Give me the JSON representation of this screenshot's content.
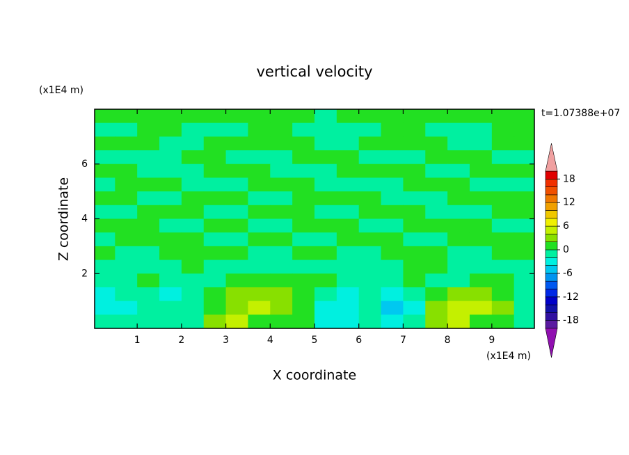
{
  "chart_data": {
    "type": "contour",
    "title": "vertical velocity",
    "xlabel": "X coordinate",
    "ylabel": "Z coordinate",
    "x_unit": "(x1E4 m)",
    "y_unit": "(x1E4 m)",
    "annotation": "t=1.07388e+07",
    "xlim": [
      0.04,
      9.96
    ],
    "ylim": [
      0,
      8
    ],
    "xticks": [
      1,
      2,
      3,
      4,
      5,
      6,
      7,
      8,
      9
    ],
    "yticks": [
      2,
      4,
      6
    ],
    "x": [
      0.25,
      0.75,
      1.25,
      1.75,
      2.25,
      2.75,
      3.25,
      3.75,
      4.25,
      4.75,
      5.25,
      5.75,
      6.25,
      6.75,
      7.25,
      7.75,
      8.25,
      8.75,
      9.25,
      9.75
    ],
    "y": [
      7.75,
      7.25,
      6.75,
      6.25,
      5.75,
      5.25,
      4.75,
      4.25,
      3.75,
      3.25,
      2.75,
      2.25,
      1.75,
      1.25,
      0.75,
      0.25
    ],
    "z": [
      [
        1,
        1,
        1,
        1,
        1,
        1,
        1,
        1,
        1,
        1,
        -1,
        1,
        1,
        1,
        1,
        1,
        1,
        1,
        1,
        1
      ],
      [
        -1,
        -1,
        1,
        1,
        -1,
        -1,
        -1,
        1,
        1,
        -1,
        -1,
        -1,
        -1,
        1,
        1,
        -1,
        -1,
        -1,
        1,
        1
      ],
      [
        1,
        1,
        1,
        -1,
        -1,
        1,
        1,
        1,
        1,
        1,
        -1,
        -1,
        1,
        1,
        1,
        1,
        -1,
        -1,
        1,
        1
      ],
      [
        -1,
        -1,
        -1,
        -1,
        1,
        1,
        -1,
        -1,
        -1,
        1,
        1,
        1,
        -1,
        -1,
        -1,
        1,
        1,
        1,
        -1,
        -1
      ],
      [
        1,
        1,
        -1,
        -1,
        -1,
        1,
        1,
        1,
        -1,
        -1,
        -1,
        1,
        1,
        1,
        1,
        -1,
        -1,
        1,
        1,
        1
      ],
      [
        -1,
        1,
        1,
        1,
        -1,
        -1,
        -1,
        1,
        1,
        1,
        -1,
        -1,
        -1,
        -1,
        1,
        1,
        1,
        -1,
        -1,
        -1
      ],
      [
        1,
        1,
        -1,
        -1,
        1,
        1,
        1,
        -1,
        -1,
        1,
        1,
        1,
        1,
        -1,
        -1,
        -1,
        1,
        1,
        1,
        1
      ],
      [
        -1,
        -1,
        1,
        1,
        1,
        -1,
        -1,
        1,
        1,
        1,
        -1,
        -1,
        1,
        1,
        1,
        -1,
        -1,
        -1,
        1,
        1
      ],
      [
        1,
        1,
        1,
        -1,
        -1,
        1,
        1,
        -1,
        -1,
        1,
        1,
        1,
        -1,
        -1,
        1,
        1,
        1,
        1,
        -1,
        -1
      ],
      [
        -1,
        1,
        1,
        1,
        1,
        -1,
        -1,
        1,
        1,
        -1,
        -1,
        1,
        1,
        1,
        -1,
        -1,
        1,
        1,
        1,
        1
      ],
      [
        1,
        -1,
        -1,
        1,
        1,
        1,
        1,
        -1,
        -1,
        1,
        1,
        -1,
        -1,
        1,
        1,
        1,
        -1,
        -1,
        1,
        1
      ],
      [
        -1,
        -1,
        -1,
        -1,
        1,
        -1,
        -1,
        -1,
        -1,
        -1,
        -1,
        -1,
        -1,
        -1,
        1,
        1,
        -1,
        -1,
        -1,
        -1
      ],
      [
        -1,
        -1,
        1,
        -1,
        -1,
        -1,
        1,
        1,
        1,
        1,
        1,
        -1,
        -1,
        -1,
        1,
        -1,
        -1,
        1,
        1,
        -1
      ],
      [
        -3,
        -1,
        -1,
        -3,
        -1,
        1,
        3,
        3,
        3,
        1,
        -1,
        -3,
        -1,
        -3,
        -1,
        1,
        3,
        3,
        1,
        -1
      ],
      [
        -3,
        -3,
        -1,
        -1,
        -1,
        1,
        3,
        5,
        3,
        1,
        -3,
        -3,
        -1,
        -5,
        -3,
        3,
        5,
        5,
        3,
        -1
      ],
      [
        -1,
        -1,
        -1,
        -1,
        -1,
        3,
        5,
        1,
        1,
        1,
        -3,
        -3,
        -1,
        -3,
        -1,
        3,
        5,
        1,
        1,
        -1
      ]
    ],
    "colorbar": {
      "levels": [
        -20,
        -18,
        -16,
        -14,
        -12,
        -10,
        -8,
        -6,
        -4,
        -2,
        0,
        2,
        4,
        6,
        8,
        10,
        12,
        14,
        16,
        18,
        20
      ],
      "colors": [
        "#9010b0",
        "#5a1aa0",
        "#3010a0",
        "#1010a8",
        "#0000c8",
        "#0028e6",
        "#0058f0",
        "#0094f0",
        "#00c8f0",
        "#00f0e0",
        "#00f0a0",
        "#22e022",
        "#88e000",
        "#c4f000",
        "#f0f000",
        "#f0c800",
        "#f0a000",
        "#f07800",
        "#f05000",
        "#f03000",
        "#e00000",
        "#f0a0a0"
      ],
      "ticks": [
        -18,
        -12,
        -6,
        0,
        6,
        12,
        18
      ]
    }
  }
}
